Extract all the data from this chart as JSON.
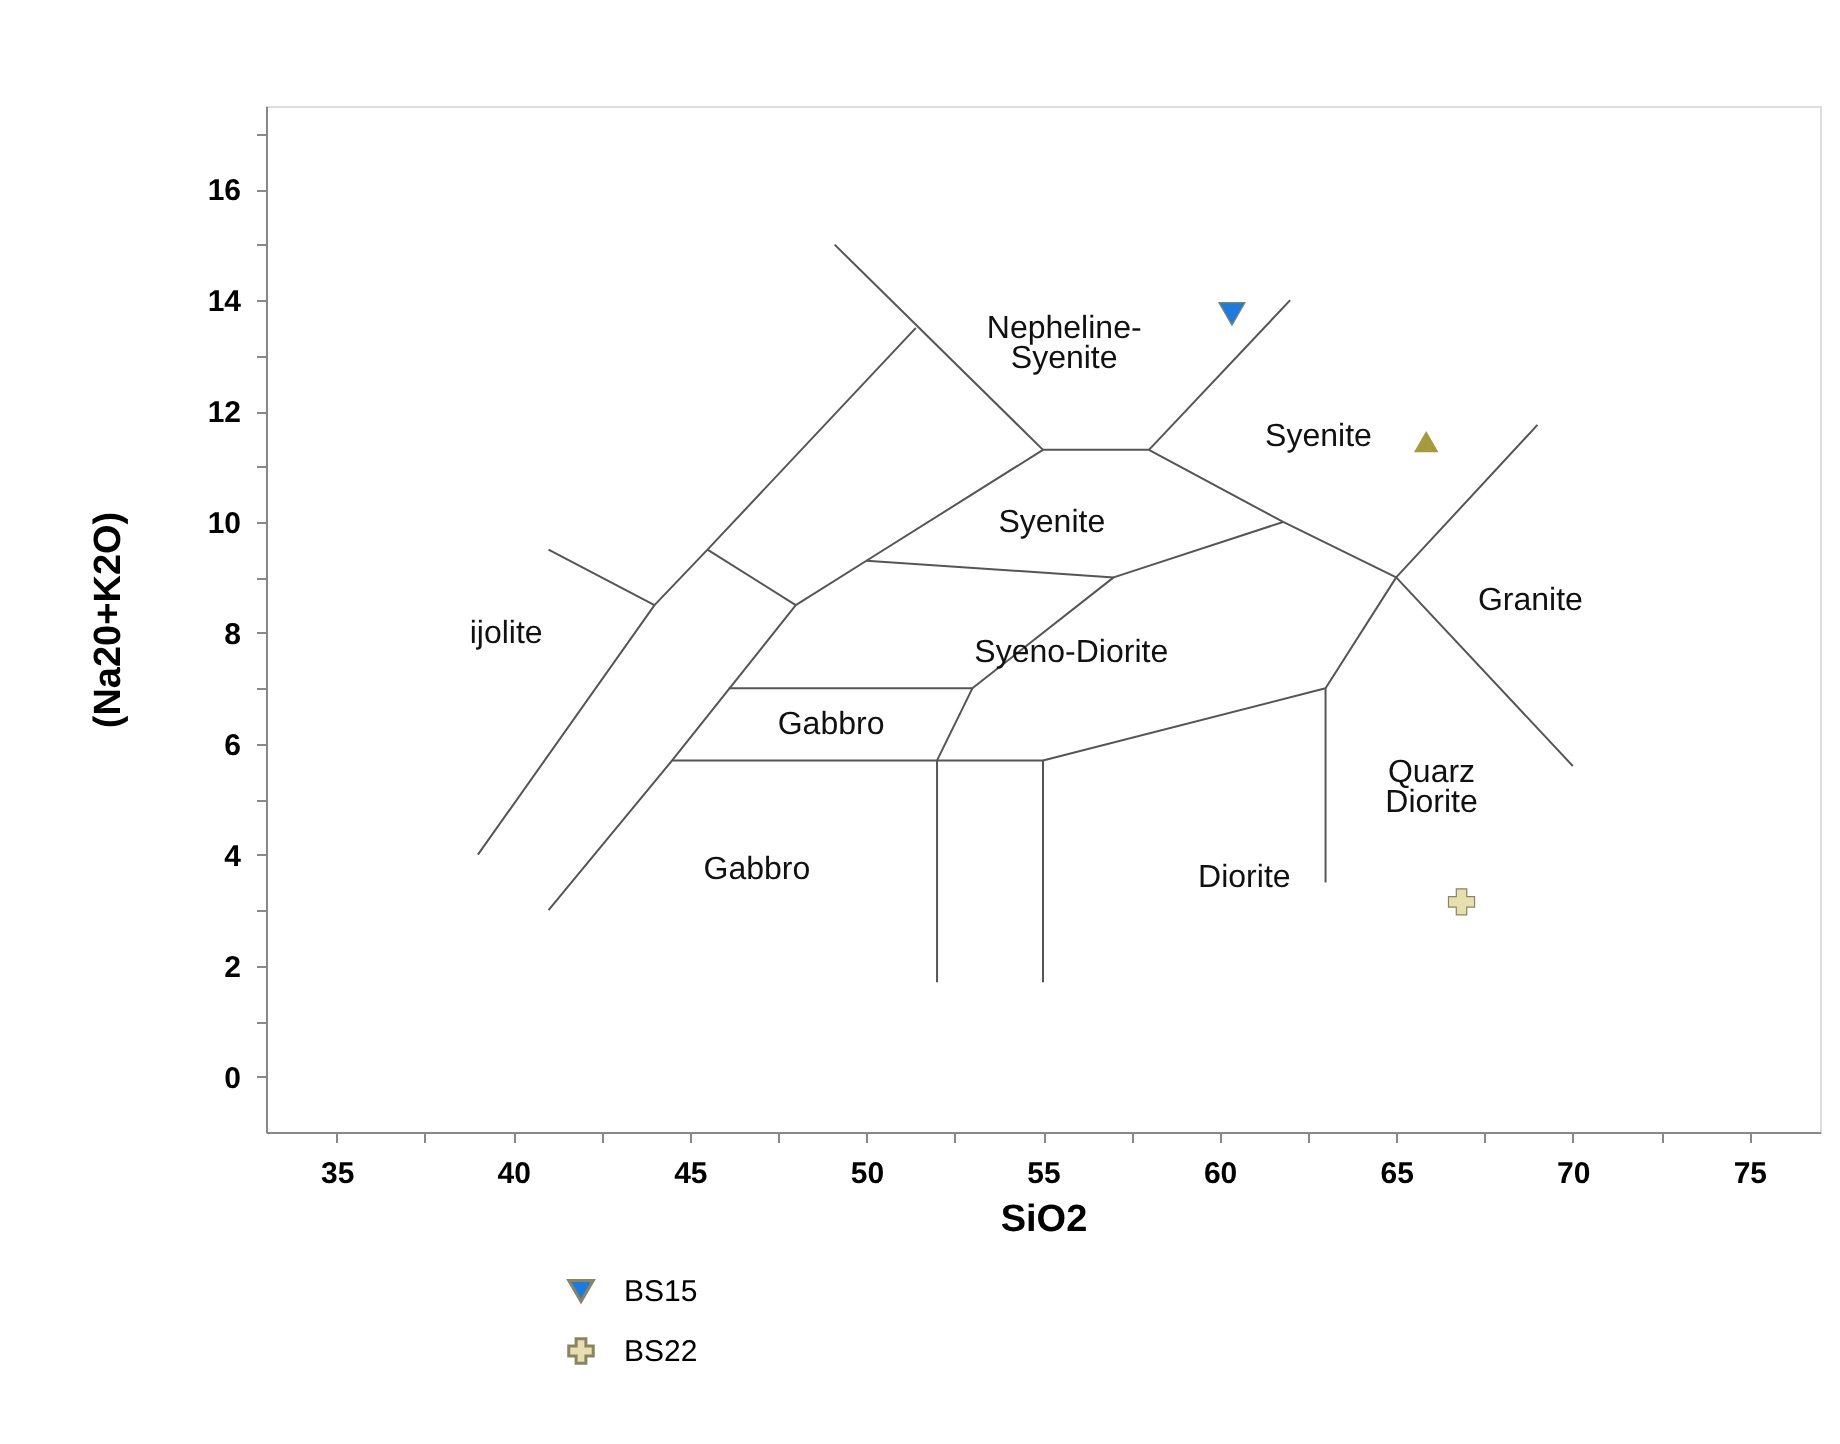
{
  "chart_data": {
    "type": "scatter",
    "xlabel": "SiO2",
    "ylabel": "(Na20+K2O)",
    "xlim": [
      33,
      77
    ],
    "ylim": [
      -1,
      17.5
    ],
    "xticks": [
      35,
      {
        "value": 37.5,
        "label": null
      },
      40,
      {
        "value": 42.5,
        "label": null
      },
      45,
      {
        "value": 47.5,
        "label": null
      },
      50,
      {
        "value": 52.5,
        "label": null
      },
      55,
      {
        "value": 57.5,
        "label": null
      },
      60,
      {
        "value": 62.5,
        "label": null
      },
      65,
      {
        "value": 67.5,
        "label": null
      },
      70,
      {
        "value": 72.5,
        "label": null
      },
      75
    ],
    "yticks": [
      0,
      {
        "value": 1,
        "label": null
      },
      2,
      {
        "value": 3,
        "label": null
      },
      4,
      {
        "value": 5,
        "label": null
      },
      6,
      {
        "value": 7,
        "label": null
      },
      8,
      {
        "value": 9,
        "label": null
      },
      10,
      {
        "value": 11,
        "label": null
      },
      12,
      {
        "value": 13,
        "label": null
      },
      14,
      {
        "value": 15,
        "label": null
      },
      16,
      {
        "value": 17,
        "label": null
      }
    ],
    "grid": false,
    "legend": "bottom",
    "series": [
      {
        "type": "line",
        "color": "#555555",
        "x": [
          39,
          44,
          45.5,
          51.4
        ],
        "values": [
          4,
          8.5,
          9.5,
          13.5
        ]
      },
      {
        "type": "line",
        "color": "#555555",
        "x": [
          41,
          44
        ],
        "values": [
          9.5,
          8.5
        ]
      },
      {
        "type": "line",
        "color": "#555555",
        "x": [
          41,
          44.5,
          48,
          50,
          55,
          58,
          61.8,
          65,
          70
        ],
        "values": [
          3,
          5.7,
          8.5,
          9.3,
          11.3,
          11.3,
          10,
          9,
          5.6
        ]
      },
      {
        "type": "line",
        "color": "#555555",
        "x": [
          45.5,
          48
        ],
        "values": [
          9.5,
          8.5
        ]
      },
      {
        "type": "line",
        "color": "#555555",
        "x": [
          49.1,
          55
        ],
        "values": [
          15,
          11.3
        ]
      },
      {
        "type": "line",
        "color": "#555555",
        "x": [
          58,
          62
        ],
        "values": [
          11.3,
          14
        ]
      },
      {
        "type": "line",
        "color": "#555555",
        "x": [
          50,
          57
        ],
        "values": [
          9.3,
          9
        ]
      },
      {
        "type": "line",
        "color": "#555555",
        "x": [
          61.8,
          57,
          53,
          52,
          52
        ],
        "values": [
          10,
          9,
          7,
          5.7,
          1.7
        ]
      },
      {
        "type": "line",
        "color": "#555555",
        "x": [
          46.1,
          53
        ],
        "values": [
          7,
          7
        ]
      },
      {
        "type": "line",
        "color": "#555555",
        "x": [
          44.5,
          55,
          55
        ],
        "values": [
          5.7,
          5.7,
          1.7
        ]
      },
      {
        "type": "line",
        "color": "#555555",
        "x": [
          55,
          63,
          65,
          69
        ],
        "values": [
          5.7,
          7,
          9,
          11.75
        ]
      },
      {
        "type": "line",
        "color": "#555555",
        "x": [
          63,
          63
        ],
        "values": [
          7,
          3.5
        ]
      },
      {
        "type": "scatter",
        "name": "BS15",
        "marker": "triangle-down",
        "color": "#1a7be0",
        "x": [
          60.35
        ],
        "values": [
          13.75
        ]
      },
      {
        "type": "scatter",
        "marker": "triangle",
        "color": "#a59a3c",
        "x": [
          65.85
        ],
        "values": [
          11.45
        ]
      },
      {
        "type": "scatter",
        "name": "BS22",
        "marker": "cross",
        "color": "#e6dfae",
        "x": [
          66.85
        ],
        "values": [
          3.15
        ]
      }
    ],
    "annotations": [
      "ijolite",
      "Nepheline-\nSyenite",
      "Syenite",
      "Syenite",
      "Granite",
      "Syeno-Diorite",
      "Gabbro",
      "Gabbro",
      "Diorite",
      "Quarz\nDiorite"
    ]
  }
}
